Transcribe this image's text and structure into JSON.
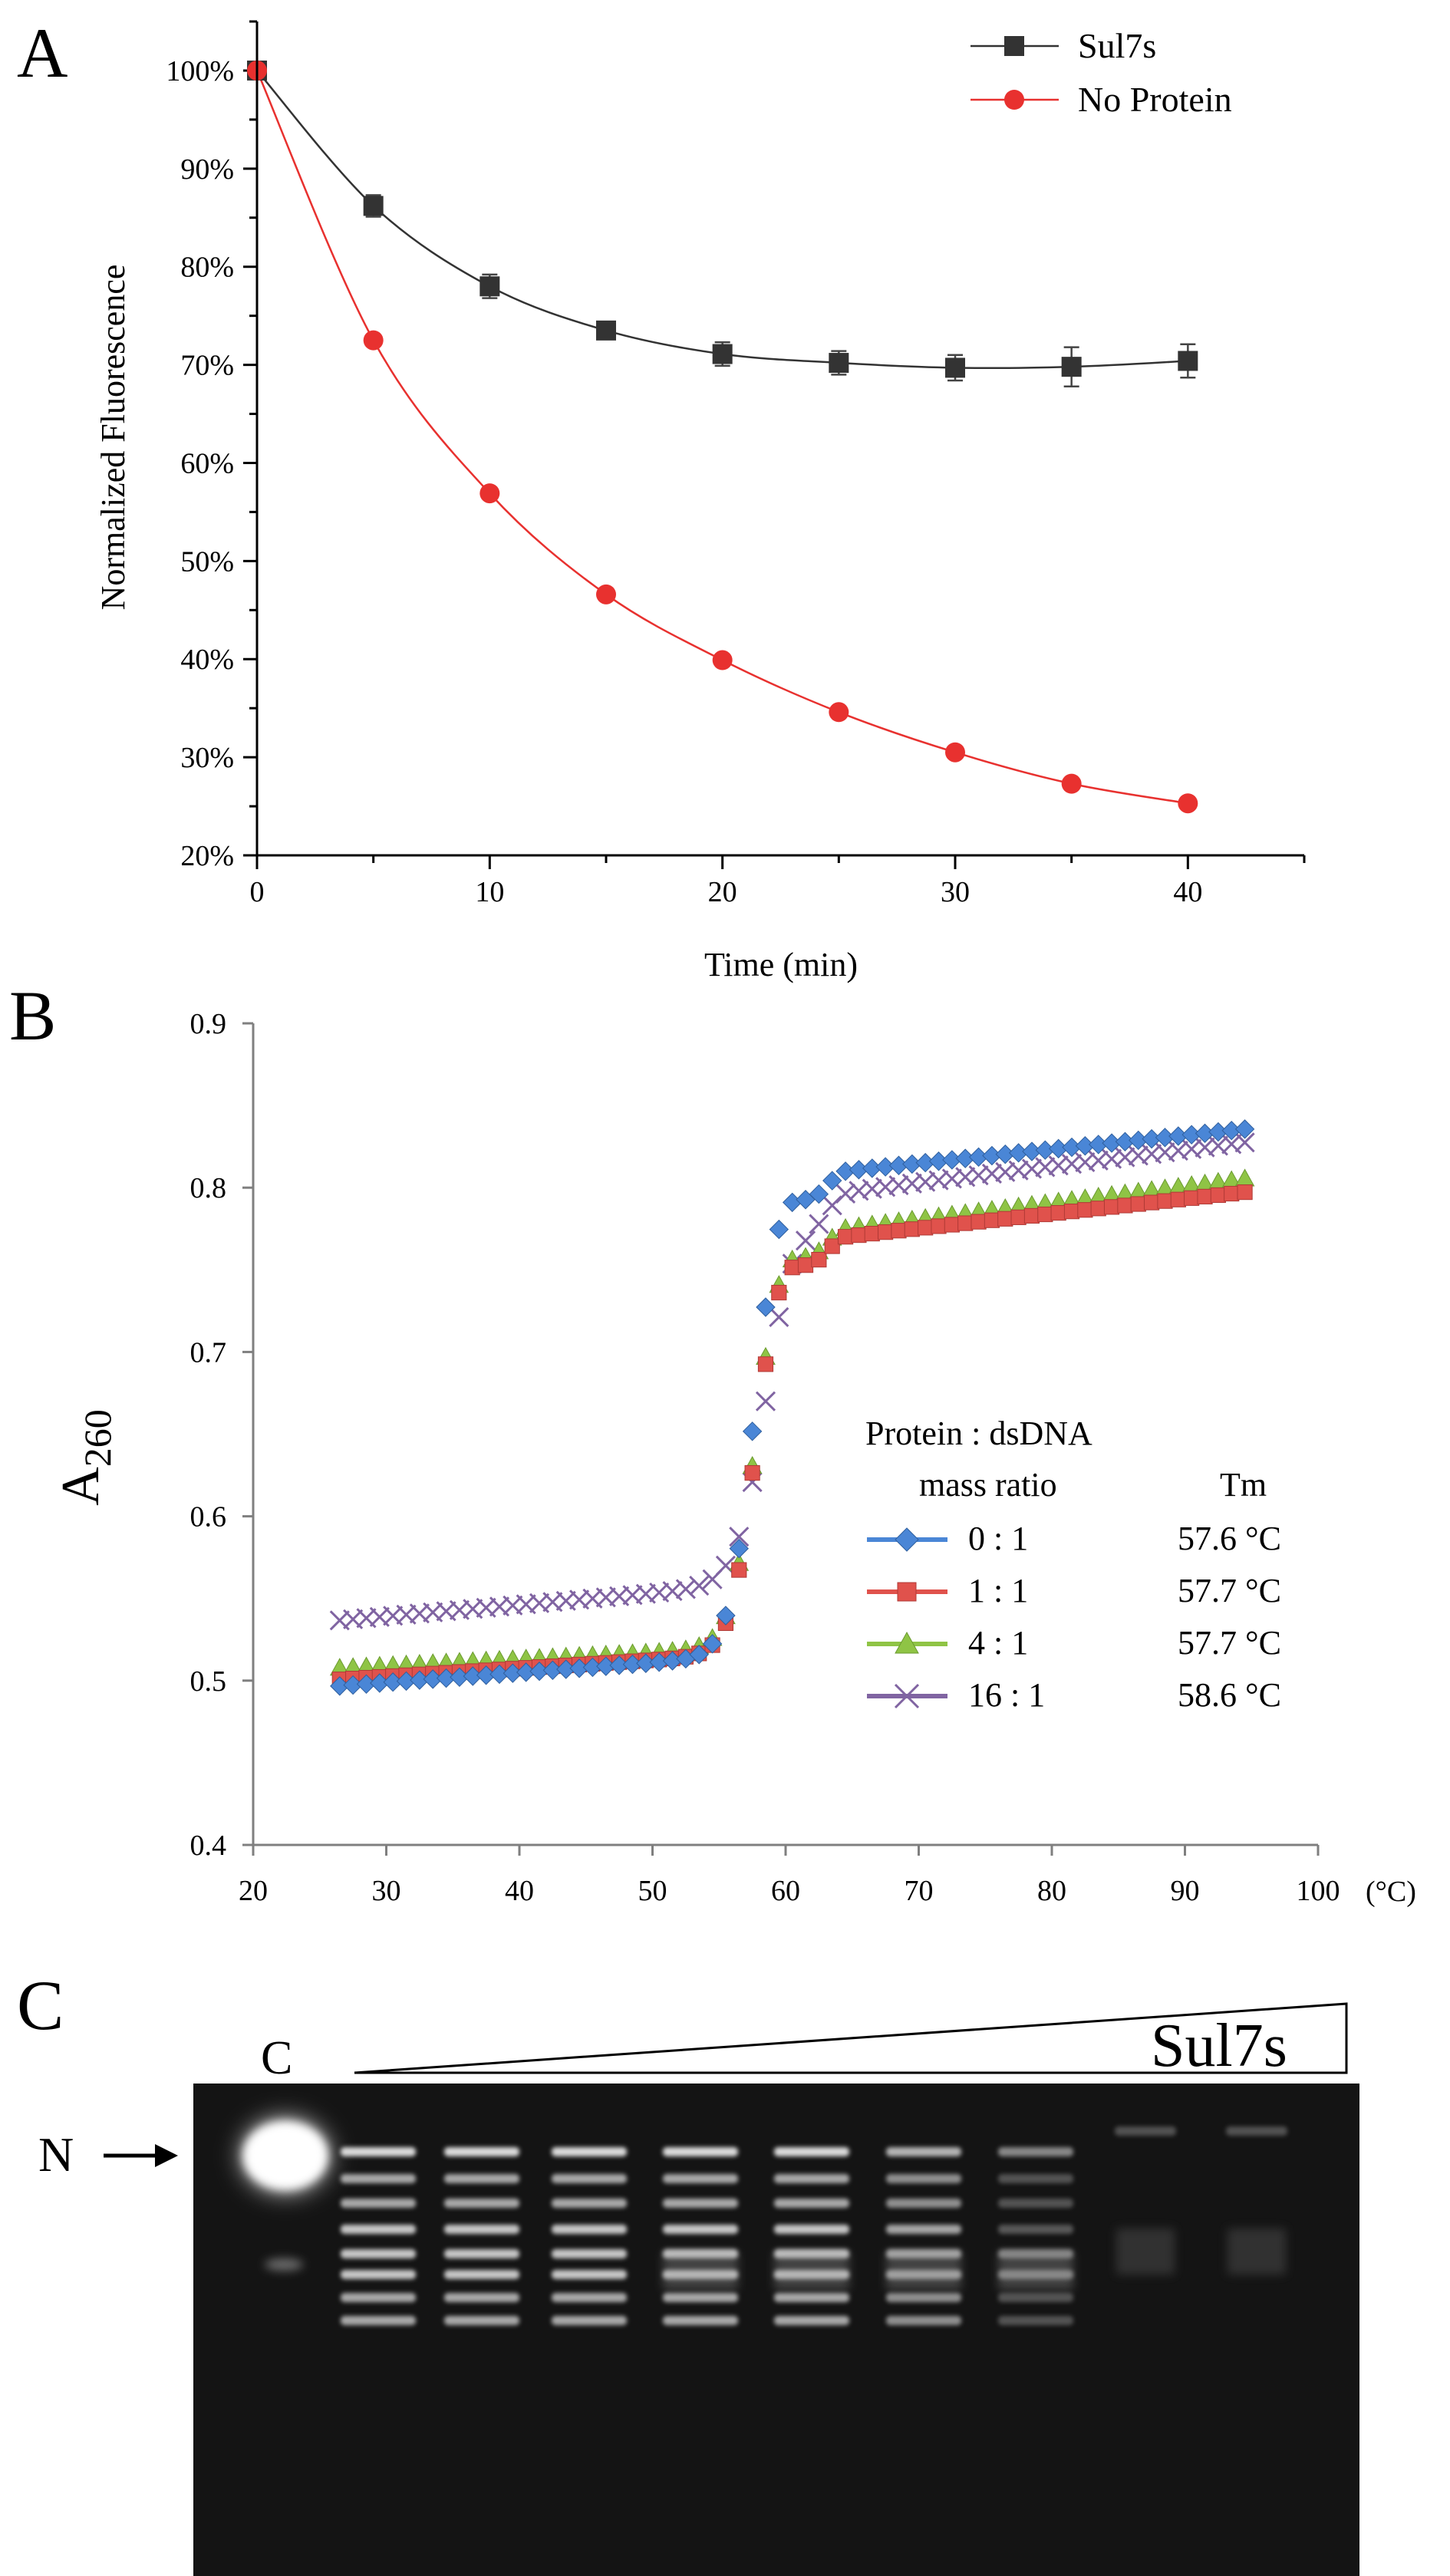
{
  "panels": {
    "A": {
      "label": "A"
    },
    "B": {
      "label": "B"
    },
    "C": {
      "label": "C"
    }
  },
  "chart_data": [
    {
      "panel": "A",
      "type": "line",
      "title": "",
      "xlabel": "Time (min)",
      "ylabel": "Normalized Fluorescence",
      "xlim": [
        0,
        45
      ],
      "ylim": [
        0.2,
        1.05
      ],
      "x_ticks": [
        0,
        10,
        20,
        30,
        40
      ],
      "y_ticks": [
        0.2,
        0.3,
        0.4,
        0.5,
        0.6,
        0.7,
        0.8,
        0.9,
        1.0
      ],
      "y_tick_labels": [
        "20%",
        "30%",
        "40%",
        "50%",
        "60%",
        "70%",
        "80%",
        "90%",
        "100%"
      ],
      "legend_position": "top-right",
      "x": [
        0,
        5,
        10,
        15,
        20,
        25,
        30,
        35,
        40
      ],
      "series": [
        {
          "name": "Sul7s",
          "marker": "square",
          "color": "#333333",
          "values": [
            1.0,
            0.862,
            0.78,
            0.735,
            0.711,
            0.702,
            0.697,
            0.698,
            0.704
          ],
          "errors": [
            0.0,
            0.011,
            0.012,
            0.007,
            0.012,
            0.012,
            0.013,
            0.02,
            0.017
          ]
        },
        {
          "name": "No Protein",
          "marker": "circle",
          "color": "#e8312f",
          "values": [
            1.0,
            0.725,
            0.569,
            0.466,
            0.399,
            0.346,
            0.305,
            0.273,
            0.253
          ]
        }
      ]
    },
    {
      "panel": "B",
      "type": "scatter",
      "title": "",
      "xlabel": "",
      "x_unit_label": "(°C)",
      "ylabel": "A",
      "ylabel_subscript": "260",
      "xlim": [
        20,
        100
      ],
      "ylim": [
        0.4,
        0.9
      ],
      "x_ticks": [
        20,
        30,
        40,
        50,
        60,
        70,
        80,
        90,
        100
      ],
      "y_ticks": [
        0.4,
        0.5,
        0.6,
        0.7,
        0.8,
        0.9
      ],
      "y_tick_labels": [
        "0.4",
        "0.5",
        "0.6",
        "0.7",
        "0.8",
        "0.9"
      ],
      "legend_title_line1": "Protein : dsDNA",
      "legend_title_line2": "mass ratio",
      "legend_tm_header": "Tm",
      "legend_position": "center-right",
      "series": [
        {
          "name": "0 : 1",
          "tm": "57.6 °C",
          "marker": "diamond",
          "color": "#4a86d6",
          "baseline": 0.497,
          "low_slope": 0.0006,
          "tm_value": 57.6,
          "amplitude": 0.3,
          "plateau": 0.808,
          "high_slope": 0.00085,
          "width": 0.9
        },
        {
          "name": "1 : 1",
          "tm": "57.7 °C",
          "marker": "square",
          "color": "#e0524c",
          "baseline": 0.501,
          "low_slope": 0.0005,
          "tm_value": 57.7,
          "amplitude": 0.26,
          "plateau": 0.768,
          "high_slope": 0.0009,
          "width": 0.9
        },
        {
          "name": "4 : 1",
          "tm": "57.7 °C",
          "marker": "triangle",
          "color": "#8fc445",
          "baseline": 0.508,
          "low_slope": 0.0004,
          "tm_value": 57.7,
          "amplitude": 0.25,
          "plateau": 0.773,
          "high_slope": 0.001,
          "width": 0.9
        },
        {
          "name": "16 : 1",
          "tm": "58.6 °C",
          "marker": "x",
          "color": "#8064a2",
          "baseline": 0.537,
          "low_slope": 0.0007,
          "tm_value": 58.6,
          "amplitude": 0.24,
          "plateau": 0.795,
          "high_slope": 0.001,
          "width": 1.1
        }
      ],
      "x_range": [
        26.5,
        94.5
      ],
      "x_step": 1
    }
  ],
  "gel": {
    "control_label": "C",
    "gradient_label": "Sul7s",
    "band_marker": "N",
    "lanes": 9
  }
}
